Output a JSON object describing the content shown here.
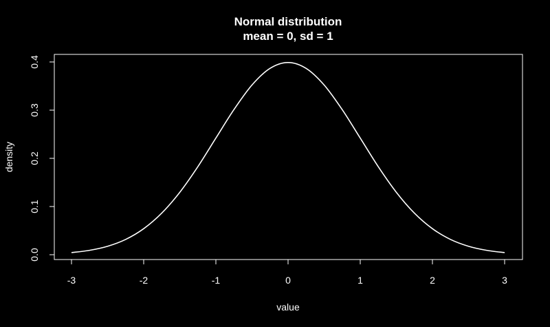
{
  "chart_data": {
    "type": "line",
    "title": "Normal distribution",
    "subtitle": "mean = 0, sd = 1",
    "xlabel": "value",
    "ylabel": "density",
    "xlim": [
      -3,
      3
    ],
    "ylim": [
      0,
      0.4
    ],
    "x_ticks": [
      "-3",
      "-2",
      "-1",
      "0",
      "1",
      "2",
      "3"
    ],
    "y_ticks": [
      "0.0",
      "0.1",
      "0.2",
      "0.3",
      "0.4"
    ],
    "grid": false,
    "series": [
      {
        "x": [
          -3.0,
          -2.75,
          -2.5,
          -2.25,
          -2.0,
          -1.75,
          -1.5,
          -1.25,
          -1.0,
          -0.75,
          -0.5,
          -0.25,
          0.0,
          0.25,
          0.5,
          0.75,
          1.0,
          1.25,
          1.5,
          1.75,
          2.0,
          2.25,
          2.5,
          2.75,
          3.0
        ],
        "y": [
          0.0044,
          0.0091,
          0.0175,
          0.0317,
          0.054,
          0.0863,
          0.1295,
          0.1826,
          0.242,
          0.3011,
          0.3521,
          0.3867,
          0.3989,
          0.3867,
          0.3521,
          0.3011,
          0.242,
          0.1826,
          0.1295,
          0.0863,
          0.054,
          0.0317,
          0.0175,
          0.0091,
          0.0044
        ]
      }
    ]
  },
  "colors": {
    "background": "#000000",
    "foreground": "#ffffff",
    "line": "#ffffff"
  }
}
